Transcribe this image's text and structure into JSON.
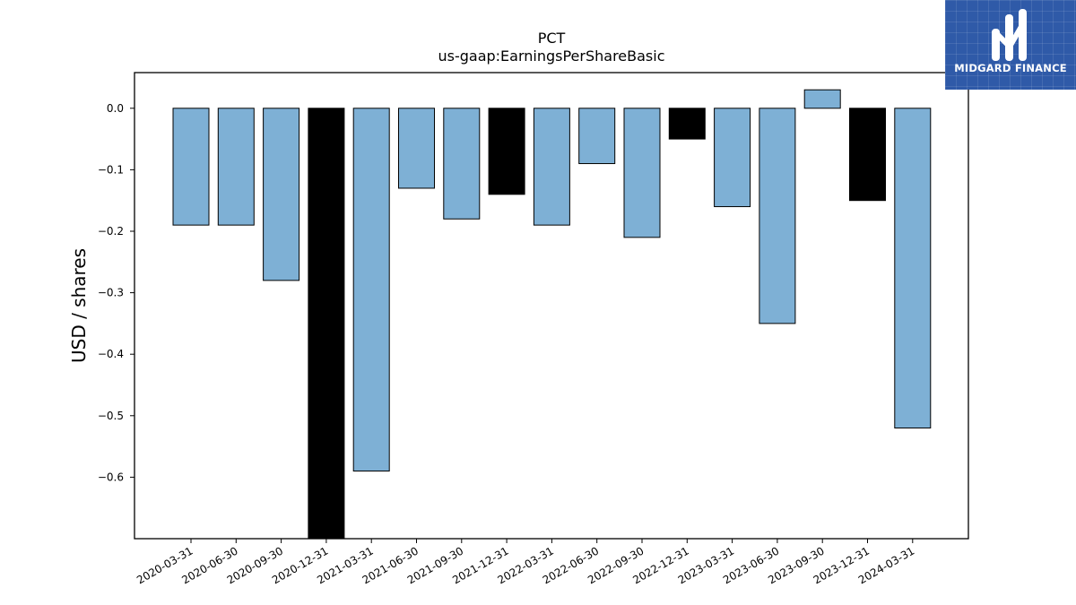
{
  "chart_data": {
    "type": "bar",
    "title": "PCT",
    "subtitle": "us-gaap:EarningsPerShareBasic",
    "xlabel": "",
    "ylabel": "USD / shares",
    "ylim": [
      -0.7,
      0.058
    ],
    "yticks": [
      0.0,
      -0.1,
      -0.2,
      -0.3,
      -0.4,
      -0.5,
      -0.6
    ],
    "ytick_labels": [
      "0.0",
      "−0.1",
      "−0.2",
      "−0.3",
      "−0.4",
      "−0.5",
      "−0.6"
    ],
    "grid": false,
    "categories": [
      "2020-03-31",
      "2020-06-30",
      "2020-09-30",
      "2020-12-31",
      "2021-03-31",
      "2021-06-30",
      "2021-09-30",
      "2021-12-31",
      "2022-03-31",
      "2022-06-30",
      "2022-09-30",
      "2022-12-31",
      "2023-03-31",
      "2023-06-30",
      "2023-09-30",
      "2023-12-31",
      "2024-03-31"
    ],
    "values": [
      -0.19,
      -0.19,
      -0.28,
      -0.7,
      -0.59,
      -0.13,
      -0.18,
      -0.14,
      -0.19,
      -0.09,
      -0.21,
      -0.05,
      -0.16,
      -0.35,
      0.03,
      -0.15,
      -0.52
    ],
    "bar_colors": [
      "#7eb0d5",
      "#7eb0d5",
      "#7eb0d5",
      "#000000",
      "#7eb0d5",
      "#7eb0d5",
      "#7eb0d5",
      "#000000",
      "#7eb0d5",
      "#7eb0d5",
      "#7eb0d5",
      "#000000",
      "#7eb0d5",
      "#7eb0d5",
      "#7eb0d5",
      "#000000",
      "#7eb0d5"
    ]
  },
  "logo": {
    "text": "MIDGARD FINANCE",
    "background": "#2f5aa8"
  }
}
